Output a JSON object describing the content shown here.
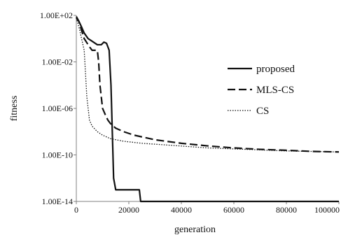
{
  "chart_data": {
    "type": "line",
    "title": "",
    "xlabel": "generation",
    "ylabel": "fitness",
    "xlim": [
      0,
      100000
    ],
    "ylim": [
      1e-14,
      100
    ],
    "yscale": "log",
    "grid": false,
    "legend_position": "right",
    "x_ticks": [
      {
        "value": 0,
        "label": "0"
      },
      {
        "value": 20000,
        "label": "20000"
      },
      {
        "value": 40000,
        "label": "40000"
      },
      {
        "value": 60000,
        "label": "60000"
      },
      {
        "value": 80000,
        "label": "80000"
      },
      {
        "value": 100000,
        "label": "100000"
      }
    ],
    "y_ticks": [
      {
        "value": 100,
        "label": "1.00E+02"
      },
      {
        "value": 0.01,
        "label": "1.00E-02"
      },
      {
        "value": 1e-06,
        "label": "1.00E-06"
      },
      {
        "value": 1e-10,
        "label": "1.00E-10"
      },
      {
        "value": 1e-14,
        "label": "1.00E-14"
      }
    ],
    "series": [
      {
        "name": "proposed",
        "style": "solid",
        "x": [
          0,
          1000,
          2000,
          3000,
          4500,
          6000,
          8000,
          9500,
          10500,
          11500,
          12500,
          13200,
          13700,
          14200,
          15000,
          20000,
          21000,
          23000,
          24000,
          24500,
          30000,
          60000,
          100000
        ],
        "y": [
          60,
          30,
          10,
          3,
          1,
          0.6,
          0.3,
          0.3,
          0.5,
          0.4,
          0.1,
          0.0001,
          1e-08,
          1e-12,
          1e-13,
          1e-13,
          1e-13,
          1e-13,
          1e-13,
          1e-14,
          1e-14,
          1e-14,
          1e-14
        ]
      },
      {
        "name": "MLS-CS",
        "style": "dashed",
        "x": [
          0,
          1000,
          2000,
          3000,
          5000,
          6000,
          7000,
          8000,
          8500,
          9000,
          10000,
          11000,
          12000,
          13000,
          15000,
          18000,
          22000,
          30000,
          40000,
          50000,
          60000,
          70000,
          80000,
          90000,
          100000
        ],
        "y": [
          80,
          30,
          5,
          1,
          0.2,
          0.1,
          0.1,
          0.1,
          0.01,
          0.0001,
          1e-06,
          3e-07,
          1e-07,
          5e-08,
          2e-08,
          1e-08,
          5e-09,
          2e-09,
          1e-09,
          6e-10,
          4e-10,
          3e-10,
          2.5e-10,
          2e-10,
          1.8e-10
        ]
      },
      {
        "name": "CS",
        "style": "dotted",
        "x": [
          0,
          1000,
          2000,
          3000,
          3500,
          4000,
          5000,
          6000,
          8000,
          10000,
          13000,
          18000,
          25000,
          35000,
          50000,
          65000,
          80000,
          100000
        ],
        "y": [
          60,
          10,
          1,
          0.1,
          0.001,
          1e-05,
          1e-07,
          3e-08,
          1e-08,
          5e-09,
          2.5e-09,
          1.5e-09,
          1e-09,
          7e-10,
          4e-10,
          3e-10,
          2.2e-10,
          1.8e-10
        ]
      }
    ]
  }
}
